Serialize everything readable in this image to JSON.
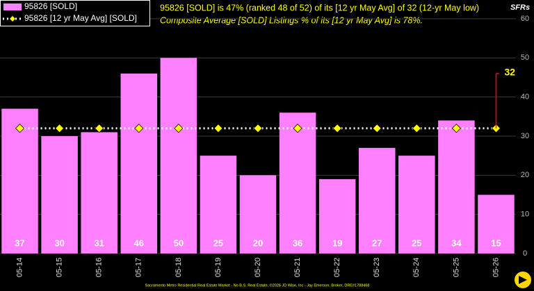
{
  "chart_data": {
    "type": "bar",
    "title": "95826 [SOLD] is 47% (ranked 48 of 52) of its [12 yr May Avg] of 32 (12-yr May low)",
    "subtitle": "Composite Average [SOLD] Listings % of its [12 yr May Avg] is 78%.",
    "y_axis_label": "SFRs",
    "footer": "Sacramento Metro Residential Real Estate Market - No B.S. Real Estate, ©2026 JD Wise, Inc - Jay Emerson, Broker, DRE#1788468",
    "categories": [
      "05-14",
      "05-15",
      "05-16",
      "05-17",
      "05-18",
      "05-19",
      "05-20",
      "05-21",
      "05-22",
      "05-23",
      "05-24",
      "05-25",
      "05-26"
    ],
    "series": [
      {
        "name": "95826 [SOLD]",
        "type": "bar",
        "color": "#ff80ff",
        "values": [
          37,
          30,
          31,
          46,
          50,
          25,
          20,
          36,
          19,
          27,
          25,
          34,
          15
        ]
      },
      {
        "name": "95826 [12 yr May Avg] [SOLD]",
        "type": "line",
        "color": "#ffffff",
        "marker_color": "#ffff00",
        "values": [
          32,
          32,
          32,
          32,
          32,
          32,
          32,
          32,
          32,
          32,
          32,
          32,
          32
        ]
      }
    ],
    "annotation": {
      "value": 32,
      "top": 46,
      "color": "#ff0000"
    },
    "ylim": [
      0,
      60
    ],
    "yticks": [
      0,
      10,
      20,
      30,
      40,
      50,
      60
    ],
    "grid": true
  }
}
